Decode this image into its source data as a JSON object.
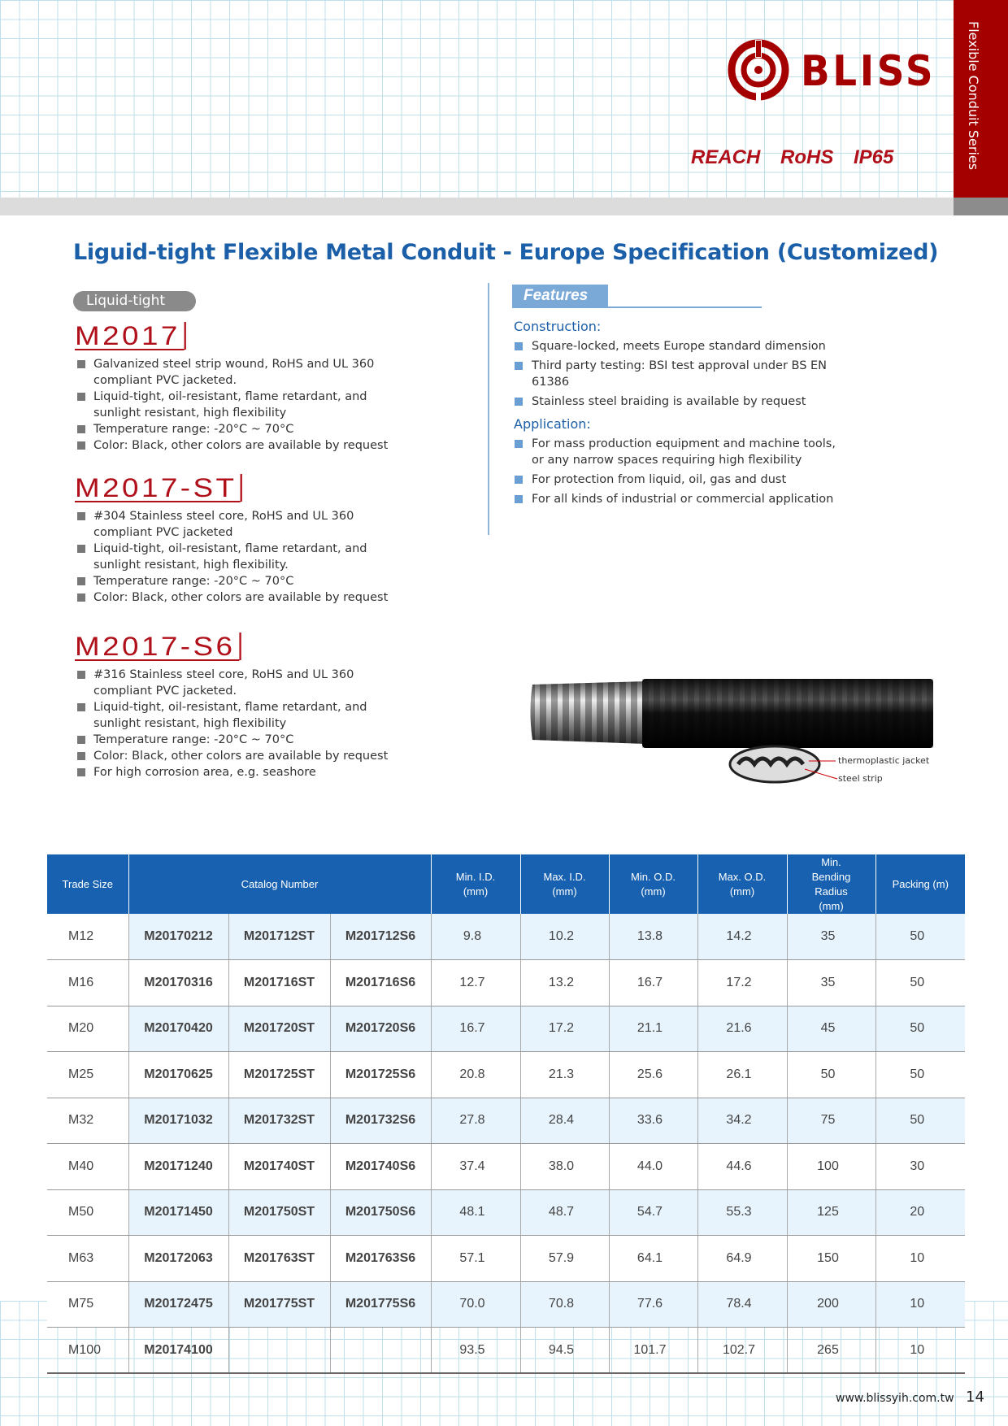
{
  "header": {
    "brand": "BLISS",
    "certifications": "REACH RoHS IP65",
    "series": "Flexible Conduit Series",
    "brand_color": "#a50000"
  },
  "title": "Liguid-tight Flexible Metal Conduit - Europe Specification (Customized)",
  "category_label": "Liquid-tight",
  "models": [
    {
      "name": "M2017",
      "bullets": [
        "Galvanized steel strip wound, RoHS and UL 360 compliant PVC jacketed.",
        "Liquid-tight, oil-resistant, flame retardant, and sunlight resistant, high flexibility",
        "Temperature range: -20°C ~ 70°C",
        "Color: Black, other colors are available by request"
      ]
    },
    {
      "name": "M2017-ST",
      "bullets": [
        "#304 Stainless steel core, RoHS and UL 360 compliant PVC jacketed",
        "Liquid-tight, oil-resistant, flame retardant, and sunlight resistant, high flexibility.",
        "Temperature range: -20°C ~ 70°C",
        "Color: Black, other colors are available by request"
      ]
    },
    {
      "name": "M2017-S6",
      "bullets": [
        "#316 Stainless steel core, RoHS and UL 360 compliant PVC jacketed.",
        "Liquid-tight, oil-resistant, flame retardant, and sunlight resistant, high flexibility",
        "Temperature range: -20°C ~ 70°C",
        "Color: Black, other colors are available by request",
        "For high corrosion area, e.g. seashore"
      ]
    }
  ],
  "features": {
    "tab": "Features",
    "construction": {
      "heading": "Construction:",
      "items": [
        "Square-locked, meets Europe standard dimension",
        "Third party testing: BSI test approval under BS EN 61386",
        "Stainless steel braiding is available by request"
      ]
    },
    "application": {
      "heading": "Application:",
      "items": [
        "For mass production equipment and machine tools, or any narrow spaces requiring high flexibility",
        "For protection from liquid, oil, gas and dust",
        "For all kinds of industrial or commercial application"
      ]
    }
  },
  "diagram_labels": {
    "jacket": "thermoplastic jacket",
    "strip": "steel strip"
  },
  "table": {
    "headers": [
      "Trade Size",
      "Catalog Number",
      "Min. I.D. (mm)",
      "Max. I.D. (mm)",
      "Min. O.D. (mm)",
      "Max. O.D. (mm)",
      "Min. Bending Radius (mm)",
      "Packing (m)"
    ],
    "rows": [
      [
        "M12",
        "M20170212",
        "M201712ST",
        "M201712S6",
        "9.8",
        "10.2",
        "13.8",
        "14.2",
        "35",
        "50"
      ],
      [
        "M16",
        "M20170316",
        "M201716ST",
        "M201716S6",
        "12.7",
        "13.2",
        "16.7",
        "17.2",
        "35",
        "50"
      ],
      [
        "M20",
        "M20170420",
        "M201720ST",
        "M201720S6",
        "16.7",
        "17.2",
        "21.1",
        "21.6",
        "45",
        "50"
      ],
      [
        "M25",
        "M20170625",
        "M201725ST",
        "M201725S6",
        "20.8",
        "21.3",
        "25.6",
        "26.1",
        "50",
        "50"
      ],
      [
        "M32",
        "M20171032",
        "M201732ST",
        "M201732S6",
        "27.8",
        "28.4",
        "33.6",
        "34.2",
        "75",
        "50"
      ],
      [
        "M40",
        "M20171240",
        "M201740ST",
        "M201740S6",
        "37.4",
        "38.0",
        "44.0",
        "44.6",
        "100",
        "30"
      ],
      [
        "M50",
        "M20171450",
        "M201750ST",
        "M201750S6",
        "48.1",
        "48.7",
        "54.7",
        "55.3",
        "125",
        "20"
      ],
      [
        "M63",
        "M20172063",
        "M201763ST",
        "M201763S6",
        "57.1",
        "57.9",
        "64.1",
        "64.9",
        "150",
        "10"
      ],
      [
        "M75",
        "M20172475",
        "M201775ST",
        "M201775S6",
        "70.0",
        "70.8",
        "77.6",
        "78.4",
        "200",
        "10"
      ],
      [
        "M100",
        "M20174100",
        "",
        "",
        "93.5",
        "94.5",
        "101.7",
        "102.7",
        "265",
        "10"
      ]
    ]
  },
  "footer": {
    "url": "www.blissyih.com.tw",
    "page": "14"
  }
}
